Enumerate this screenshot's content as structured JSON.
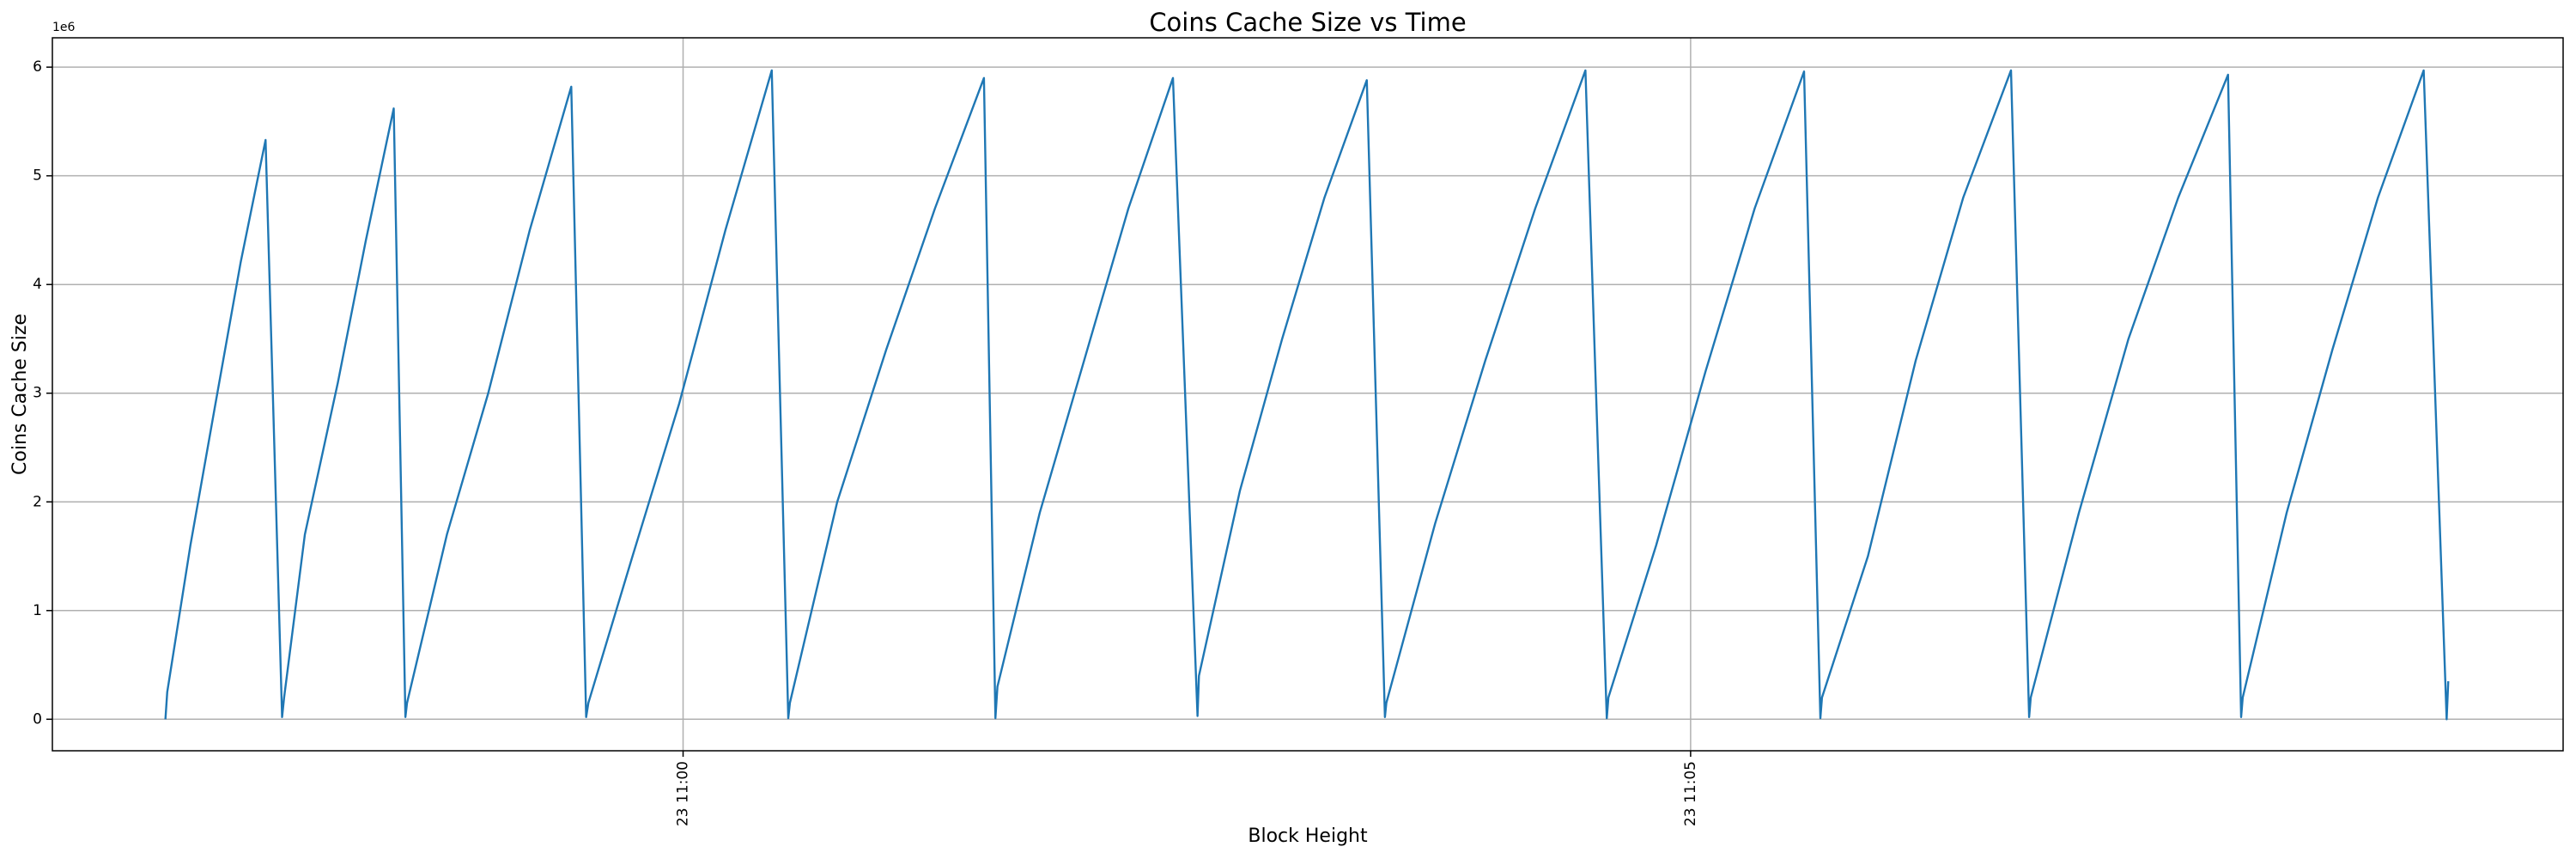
{
  "chart_data": {
    "type": "line",
    "title": "Coins Cache Size vs Time",
    "x_label": "Block Height",
    "y_label": "Coins Cache Size",
    "y_offset_label": "1e6",
    "color": "#1f77b4",
    "grid": true,
    "x": [
      -2.569,
      -2.56,
      -2.445,
      -2.321,
      -2.196,
      -2.072,
      -1.99,
      -1.98,
      -1.877,
      -1.713,
      -1.575,
      -1.436,
      -1.378,
      -1.37,
      -1.172,
      -0.967,
      -0.761,
      -0.555,
      -0.481,
      -0.47,
      -0.251,
      -0.02,
      0.21,
      0.44,
      0.522,
      0.53,
      0.765,
      1.008,
      1.25,
      1.493,
      1.55,
      1.56,
      1.77,
      1.99,
      2.21,
      2.431,
      2.553,
      2.56,
      2.763,
      2.973,
      3.183,
      3.393,
      3.483,
      3.49,
      3.732,
      3.981,
      4.229,
      4.478,
      4.584,
      4.592,
      4.829,
      5.074,
      5.318,
      5.563,
      5.644,
      5.652,
      5.88,
      6.117,
      6.353,
      6.59,
      6.68,
      6.688,
      6.927,
      7.173,
      7.42,
      7.667,
      7.732,
      7.74,
      7.958,
      8.185,
      8.411,
      8.638,
      8.752,
      8.76
    ],
    "values": [
      0,
      0.25,
      1.6,
      2.9,
      4.2,
      5.33,
      0.02,
      0.2,
      1.7,
      3.1,
      4.4,
      5.62,
      0.02,
      0.15,
      1.7,
      3.0,
      4.5,
      5.82,
      0.02,
      0.15,
      1.5,
      2.9,
      4.5,
      5.97,
      0.01,
      0.15,
      2.0,
      3.4,
      4.7,
      5.9,
      0.01,
      0.3,
      1.9,
      3.3,
      4.7,
      5.9,
      0.03,
      0.4,
      2.1,
      3.5,
      4.8,
      5.88,
      0.02,
      0.15,
      1.8,
      3.3,
      4.7,
      5.97,
      0.01,
      0.2,
      1.6,
      3.2,
      4.7,
      5.96,
      0.01,
      0.2,
      1.5,
      3.3,
      4.8,
      5.97,
      0.02,
      0.2,
      1.9,
      3.5,
      4.8,
      5.93,
      0.02,
      0.2,
      1.9,
      3.4,
      4.8,
      5.97,
      0,
      0.35
    ],
    "xlim": [
      -3.13,
      9.33
    ],
    "xticks": [
      {
        "value": 0,
        "label": "23 11:00"
      },
      {
        "value": 5,
        "label": "23 11:05"
      }
    ],
    "ylim": [
      -0.29,
      6.27
    ],
    "yticks": [
      0,
      1,
      2,
      3,
      4,
      5,
      6
    ]
  }
}
